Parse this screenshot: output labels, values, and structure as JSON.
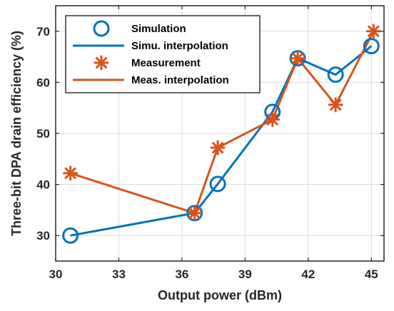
{
  "chart_data": {
    "type": "line",
    "xlabel": "Output power (dBm)",
    "ylabel": "Three-bit DPA drain efficiency (%)",
    "xlim": [
      30,
      45.6
    ],
    "ylim": [
      25,
      75
    ],
    "xticks": [
      30,
      33,
      36,
      39,
      42,
      45
    ],
    "yticks": [
      30,
      40,
      50,
      60,
      70
    ],
    "grid": true,
    "legend_position": "top-left",
    "series": [
      {
        "name": "Simulation",
        "interp_name": "Simu. interpolation",
        "color": "#0072BD",
        "marker": "circle",
        "x": [
          30.7,
          36.6,
          37.7,
          40.3,
          41.5,
          43.3,
          45.0
        ],
        "y": [
          30.0,
          34.4,
          40.1,
          54.2,
          64.7,
          61.5,
          67.1
        ]
      },
      {
        "name": "Measurement",
        "interp_name": "Meas. interpolation",
        "color": "#D95319",
        "marker": "asterisk",
        "x": [
          30.7,
          36.6,
          37.7,
          40.3,
          41.5,
          43.3,
          45.1
        ],
        "y": [
          42.2,
          34.4,
          47.2,
          52.7,
          64.7,
          55.6,
          70.0
        ]
      }
    ]
  }
}
